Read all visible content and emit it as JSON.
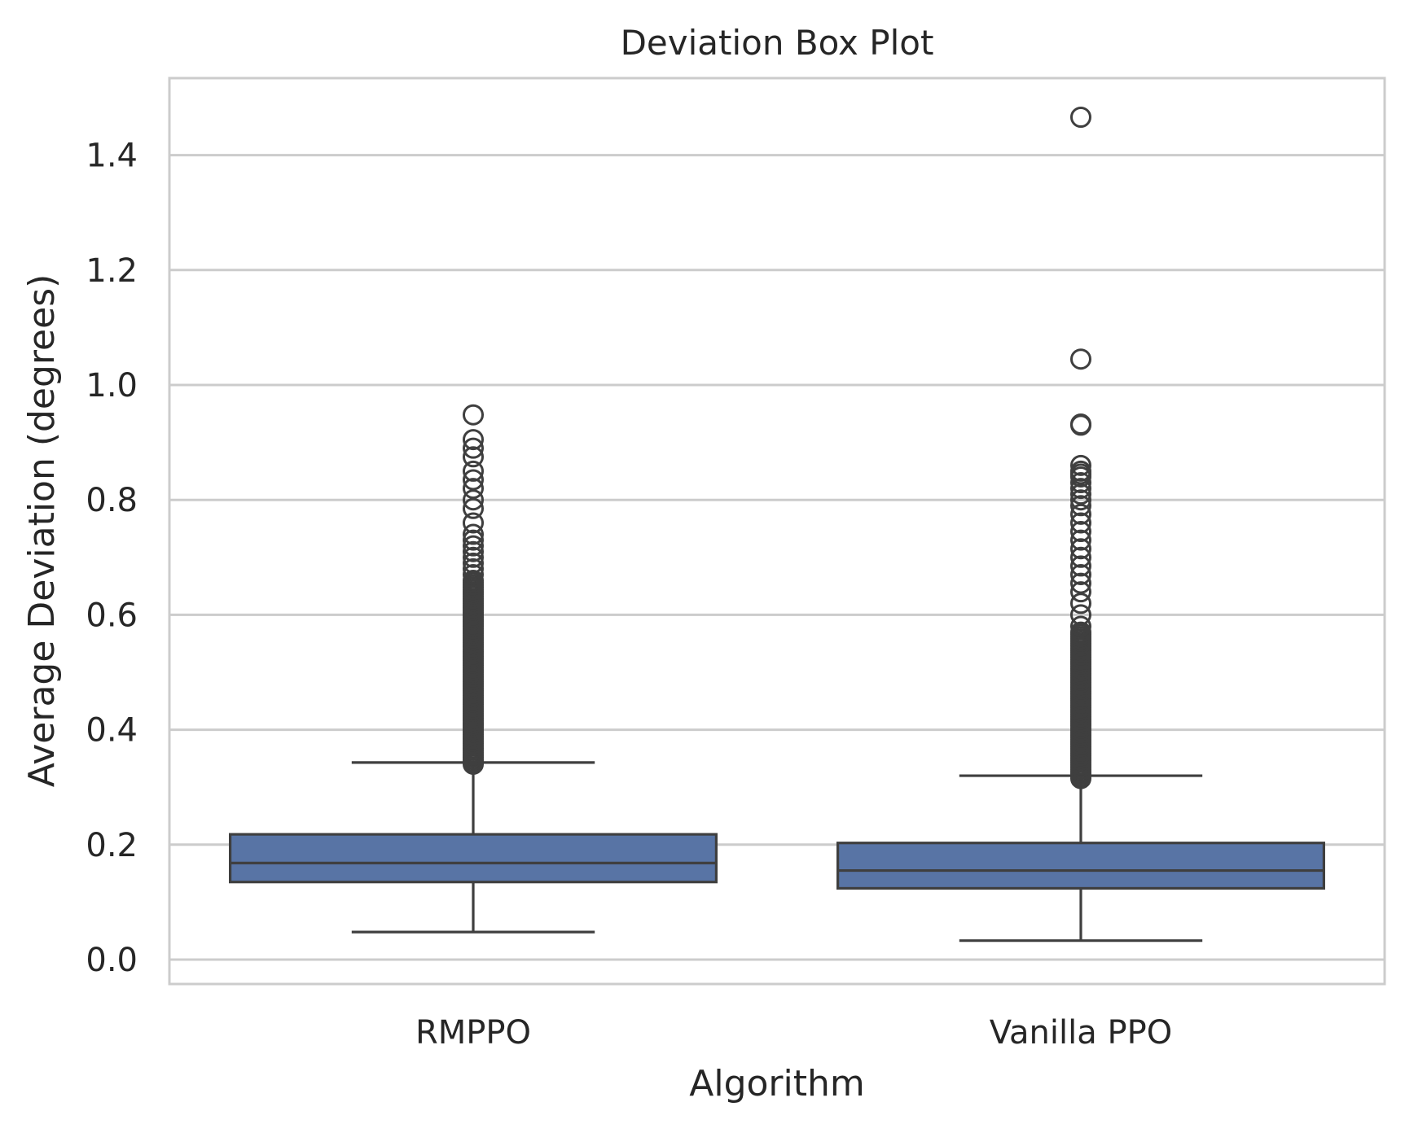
{
  "chart_data": {
    "type": "box",
    "title": "Deviation Box Plot",
    "xlabel": "Algorithm",
    "ylabel": "Average Deviation (degrees)",
    "ylim": [
      -0.04,
      1.54
    ],
    "yticks": [
      "0.0",
      "0.2",
      "0.4",
      "0.6",
      "0.8",
      "1.0",
      "1.2",
      "1.4"
    ],
    "grid": true,
    "colors": {
      "box_fill": "#5874a5",
      "line": "#3f3f3f",
      "grid": "#cccccc",
      "frame": "#cccccc"
    },
    "categories": [
      "RMPPO",
      "Vanilla PPO"
    ],
    "boxes": [
      {
        "name": "RMPPO",
        "whisker_low": 0.048,
        "q1": 0.135,
        "median": 0.168,
        "q3": 0.218,
        "whisker_high": 0.343,
        "outliers_dense_range": [
          0.34,
          0.66
        ],
        "outliers": [
          0.67,
          0.68,
          0.69,
          0.7,
          0.71,
          0.72,
          0.73,
          0.74,
          0.76,
          0.785,
          0.8,
          0.82,
          0.835,
          0.85,
          0.875,
          0.89,
          0.905,
          0.948
        ]
      },
      {
        "name": "Vanilla PPO",
        "whisker_low": 0.033,
        "q1": 0.124,
        "median": 0.155,
        "q3": 0.203,
        "whisker_high": 0.32,
        "outliers_dense_range": [
          0.315,
          0.57
        ],
        "outliers": [
          0.58,
          0.6,
          0.62,
          0.64,
          0.655,
          0.67,
          0.685,
          0.7,
          0.715,
          0.73,
          0.745,
          0.76,
          0.775,
          0.79,
          0.8,
          0.81,
          0.82,
          0.83,
          0.84,
          0.845,
          0.85,
          0.86,
          0.93,
          0.932,
          1.045,
          1.466
        ]
      }
    ]
  }
}
